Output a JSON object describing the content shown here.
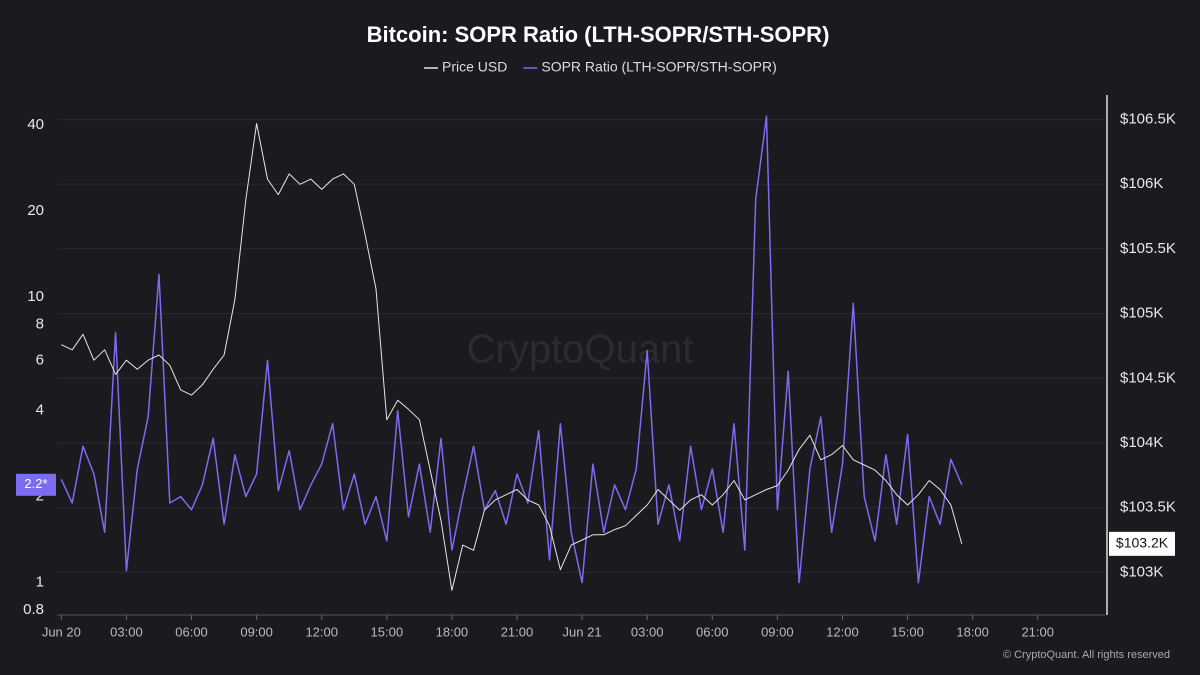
{
  "chart_data": {
    "type": "line",
    "title": "Bitcoin: SOPR Ratio (LTH-SOPR/STH-SOPR)",
    "watermark": "CryptoQuant",
    "footer": "© CryptoQuant. All rights reserved",
    "x": [
      0,
      0.5,
      1,
      1.5,
      2,
      2.5,
      3,
      3.5,
      4,
      4.5,
      5,
      5.5,
      6,
      6.5,
      7,
      7.5,
      8,
      8.5,
      9,
      9.5,
      10,
      10.5,
      11,
      11.5,
      12,
      12.5,
      13,
      13.5,
      14,
      14.5,
      15,
      15.5,
      16,
      16.5,
      17,
      17.5,
      18,
      18.5,
      19,
      19.5,
      20,
      20.5,
      21,
      21.5,
      22,
      22.5,
      23,
      23.5,
      24,
      24.5,
      25,
      25.5,
      26,
      26.5,
      27,
      27.5,
      28,
      28.5,
      29,
      29.5,
      30,
      30.5,
      31,
      31.5,
      32,
      32.5,
      33,
      33.5,
      34,
      34.5,
      35,
      35.5,
      36,
      36.5,
      37,
      37.5,
      38,
      38.5,
      39,
      39.5,
      40,
      40.5,
      41,
      41.5
    ],
    "xlim": [
      -0.2,
      48.1
    ],
    "xticks": [
      {
        "value": 0,
        "label": "Jun 20"
      },
      {
        "value": 3,
        "label": "03:00"
      },
      {
        "value": 6,
        "label": "06:00"
      },
      {
        "value": 9,
        "label": "09:00"
      },
      {
        "value": 12,
        "label": "12:00"
      },
      {
        "value": 15,
        "label": "15:00"
      },
      {
        "value": 18,
        "label": "18:00"
      },
      {
        "value": 21,
        "label": "21:00"
      },
      {
        "value": 24,
        "label": "Jun 21"
      },
      {
        "value": 27,
        "label": "03:00"
      },
      {
        "value": 30,
        "label": "06:00"
      },
      {
        "value": 33,
        "label": "09:00"
      },
      {
        "value": 36,
        "label": "12:00"
      },
      {
        "value": 39,
        "label": "15:00"
      },
      {
        "value": 42,
        "label": "18:00"
      },
      {
        "value": 45,
        "label": "21:00"
      }
    ],
    "ylog": true,
    "ylim": [
      0.77,
      51
    ],
    "yticks": [
      0.8,
      1,
      2,
      4,
      6,
      8,
      10,
      20,
      40
    ],
    "y2lim": [
      102670,
      106690
    ],
    "y2ticks": [
      {
        "value": 103000,
        "label": "$103K"
      },
      {
        "value": 103500,
        "label": "$103.5K"
      },
      {
        "value": 104000,
        "label": "$104K"
      },
      {
        "value": 104500,
        "label": "$104.5K"
      },
      {
        "value": 105000,
        "label": "$105K"
      },
      {
        "value": 105500,
        "label": "$105.5K"
      },
      {
        "value": 106000,
        "label": "$106K"
      },
      {
        "value": 106500,
        "label": "$106.5K"
      }
    ],
    "grid": true,
    "legend": "top",
    "series": [
      {
        "name": "Price USD",
        "color": "#e6e6e6",
        "axis": "y2",
        "values": [
          104760,
          104720,
          104840,
          104640,
          104720,
          104530,
          104640,
          104570,
          104640,
          104680,
          104600,
          104410,
          104370,
          104450,
          104570,
          104680,
          105110,
          105880,
          106470,
          106040,
          105920,
          106080,
          106000,
          106040,
          105960,
          106040,
          106080,
          106000,
          105610,
          105190,
          104180,
          104330,
          104260,
          104180,
          103790,
          103400,
          102860,
          103210,
          103170,
          103480,
          103560,
          103600,
          103640,
          103560,
          103520,
          103360,
          103020,
          103210,
          103250,
          103290,
          103290,
          103330,
          103360,
          103440,
          103520,
          103640,
          103560,
          103480,
          103560,
          103600,
          103520,
          103600,
          103710,
          103560,
          103600,
          103640,
          103670,
          103790,
          103950,
          104060,
          103870,
          103910,
          103980,
          103870,
          103830,
          103790,
          103710,
          103600,
          103520,
          103600,
          103710,
          103640,
          103520,
          103220
        ]
      },
      {
        "name": "SOPR Ratio (LTH-SOPR/STH-SOPR)",
        "color": "#7b6cf0",
        "axis": "y",
        "values": [
          2.3,
          1.9,
          3,
          2.4,
          1.5,
          7.5,
          1.1,
          2.5,
          3.8,
          12,
          1.9,
          2.0,
          1.8,
          2.2,
          3.2,
          1.6,
          2.8,
          2.0,
          2.4,
          6.0,
          2.1,
          2.9,
          1.8,
          2.2,
          2.6,
          3.6,
          1.8,
          2.4,
          1.6,
          2.0,
          1.4,
          4.0,
          1.7,
          2.6,
          1.5,
          3.2,
          1.3,
          2.0,
          3.0,
          1.8,
          2.1,
          1.6,
          2.4,
          1.9,
          3.4,
          1.2,
          3.6,
          1.5,
          1.0,
          2.6,
          1.5,
          2.2,
          1.8,
          2.5,
          6.5,
          1.6,
          2.2,
          1.4,
          3.0,
          1.8,
          2.5,
          1.5,
          3.6,
          1.3,
          22,
          43,
          1.8,
          5.5,
          1.0,
          2.5,
          3.8,
          1.5,
          2.6,
          9.5,
          2.0,
          1.4,
          2.8,
          1.6,
          3.3,
          1.0,
          2.0,
          1.6,
          2.7,
          2.2
        ]
      }
    ],
    "annotations": [
      {
        "label": "2.2*",
        "value": 2.2,
        "axis": "y"
      },
      {
        "label": "$103.2K",
        "value": 103220,
        "axis": "y2"
      }
    ]
  }
}
